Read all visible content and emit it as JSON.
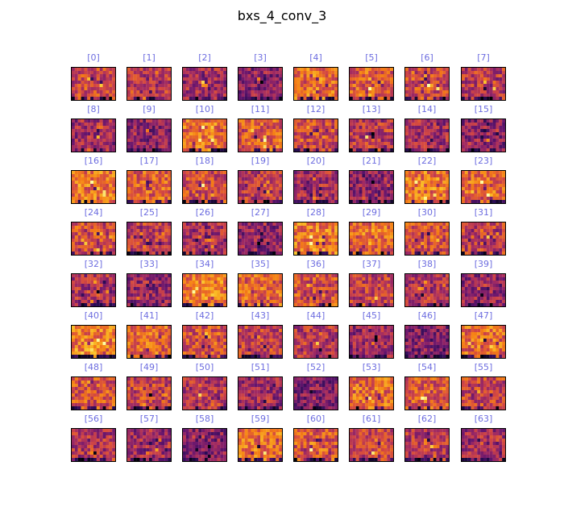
{
  "figure": {
    "title": "bxs_4_conv_3",
    "label_color": "#6d6de0",
    "colormap": "inferno"
  },
  "panels": [
    {
      "label": "[0]"
    },
    {
      "label": "[1]"
    },
    {
      "label": "[2]"
    },
    {
      "label": "[3]"
    },
    {
      "label": "[4]"
    },
    {
      "label": "[5]"
    },
    {
      "label": "[6]"
    },
    {
      "label": "[7]"
    },
    {
      "label": "[8]"
    },
    {
      "label": "[9]"
    },
    {
      "label": "[10]"
    },
    {
      "label": "[11]"
    },
    {
      "label": "[12]"
    },
    {
      "label": "[13]"
    },
    {
      "label": "[14]"
    },
    {
      "label": "[15]"
    },
    {
      "label": "[16]"
    },
    {
      "label": "[17]"
    },
    {
      "label": "[18]"
    },
    {
      "label": "[19]"
    },
    {
      "label": "[20]"
    },
    {
      "label": "[21]"
    },
    {
      "label": "[22]"
    },
    {
      "label": "[23]"
    },
    {
      "label": "[24]"
    },
    {
      "label": "[25]"
    },
    {
      "label": "[26]"
    },
    {
      "label": "[27]"
    },
    {
      "label": "[28]"
    },
    {
      "label": "[29]"
    },
    {
      "label": "[30]"
    },
    {
      "label": "[31]"
    },
    {
      "label": "[32]"
    },
    {
      "label": "[33]"
    },
    {
      "label": "[34]"
    },
    {
      "label": "[35]"
    },
    {
      "label": "[36]"
    },
    {
      "label": "[37]"
    },
    {
      "label": "[38]"
    },
    {
      "label": "[39]"
    },
    {
      "label": "[40]"
    },
    {
      "label": "[41]"
    },
    {
      "label": "[42]"
    },
    {
      "label": "[43]"
    },
    {
      "label": "[44]"
    },
    {
      "label": "[45]"
    },
    {
      "label": "[46]"
    },
    {
      "label": "[47]"
    },
    {
      "label": "[48]"
    },
    {
      "label": "[49]"
    },
    {
      "label": "[50]"
    },
    {
      "label": "[51]"
    },
    {
      "label": "[52]"
    },
    {
      "label": "[53]"
    },
    {
      "label": "[54]"
    },
    {
      "label": "[55]"
    },
    {
      "label": "[56]"
    },
    {
      "label": "[57]"
    },
    {
      "label": "[58]"
    },
    {
      "label": "[59]"
    },
    {
      "label": "[60]"
    },
    {
      "label": "[61]"
    },
    {
      "label": "[62]"
    },
    {
      "label": "[63]"
    }
  ]
}
